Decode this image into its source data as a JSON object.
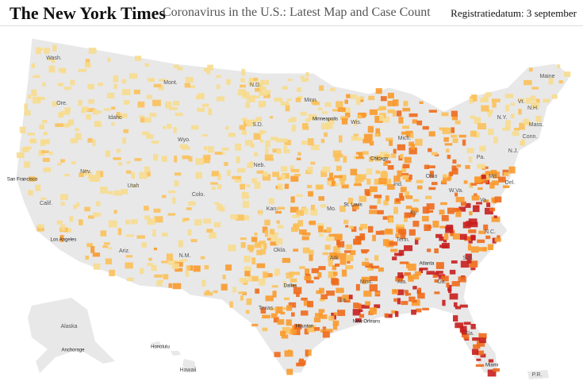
{
  "header": {
    "logo": "The New York Times",
    "title": "Coronavirus in the U.S.: Latest Map and Case Count",
    "date": "Registratiedatum: 3 september"
  },
  "map": {
    "labels": [
      "Wash.",
      "Mont.",
      "N.D.",
      "Minn.",
      "Maine",
      "Vt.",
      "N.H.",
      "Ore.",
      "Idaho",
      "S.D.",
      "Wis.",
      "Mich.",
      "N.Y.",
      "Mass.",
      "Wyo.",
      "Minneapolis",
      "Conn.",
      "N.J.",
      "Pa.",
      "Chicago",
      "Nev.",
      "Neb.",
      "Ohio",
      "Md.",
      "Del.",
      "San Francisco",
      "Utah",
      "Colo.",
      "Ind.",
      "W.Va.",
      "Va.",
      "Calif.",
      "Kan.",
      "St. Louis",
      "Ky.",
      "Mo.",
      "Los Angeles",
      "Tenn.",
      "N.C.",
      "Ariz.",
      "Okla.",
      "Ark.",
      "N.M.",
      "Atlanta",
      "S.C.",
      "Dallas",
      "Miss.",
      "Ala.",
      "Ga.",
      "Texas",
      "La.",
      "Houston",
      "New Orleans",
      "Fla.",
      "Alaska",
      "Anchorage",
      "Honolulu",
      "Hawaii",
      "Miami",
      "P.R."
    ]
  }
}
